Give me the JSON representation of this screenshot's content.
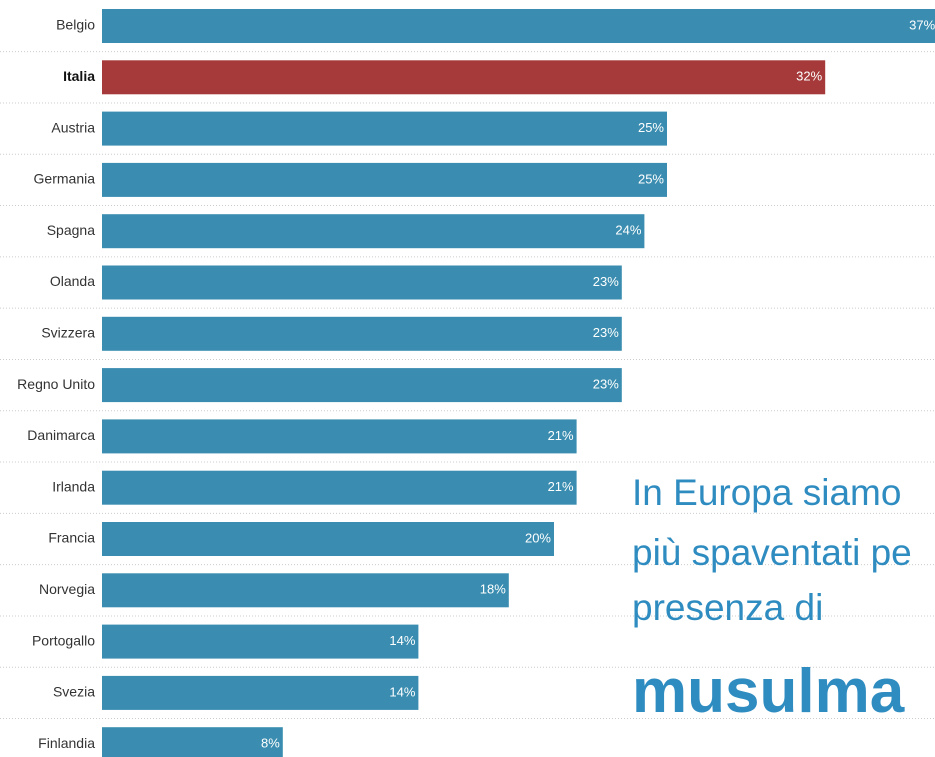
{
  "chart_data": {
    "type": "bar",
    "orientation": "horizontal",
    "categories": [
      "Belgio",
      "Italia",
      "Austria",
      "Germania",
      "Spagna",
      "Olanda",
      "Svizzera",
      "Regno Unito",
      "Danimarca",
      "Irlanda",
      "Francia",
      "Norvegia",
      "Portogallo",
      "Svezia",
      "Finlandia"
    ],
    "values": [
      37,
      32,
      25,
      25,
      24,
      23,
      23,
      23,
      21,
      21,
      20,
      18,
      14,
      14,
      8
    ],
    "value_labels": [
      "37%",
      "32%",
      "25%",
      "25%",
      "24%",
      "23%",
      "23%",
      "23%",
      "21%",
      "21%",
      "20%",
      "18%",
      "14%",
      "14%",
      "8%"
    ],
    "color": "#3a8db0",
    "highlight": "Italia",
    "highlight_color": "#a63a3a",
    "annotations": [
      "In Europa siamo",
      "più spaventati pe",
      "presenza di",
      "musulma"
    ]
  }
}
